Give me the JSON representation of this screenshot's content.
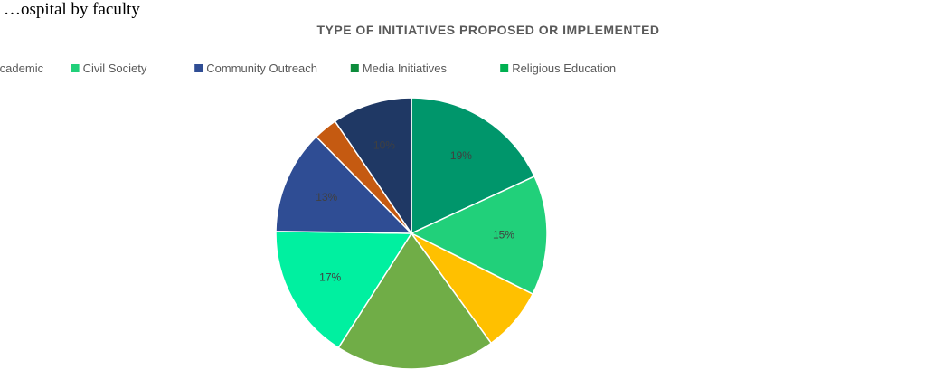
{
  "page_text": {
    "top_line": "…ospital by faculty"
  },
  "chart_data": {
    "type": "pie",
    "title": "TYPE OF INITIATIVES PROPOSED OR IMPLEMENTED",
    "legend_position": "top",
    "legend": [
      {
        "label": "Academic",
        "color": "#009966"
      },
      {
        "label": "Civil Society",
        "color": "#21d07a"
      },
      {
        "label": "Community Outreach",
        "color": "#2f4d94"
      },
      {
        "label": "Media Initiatives",
        "color": "#0d8c3c"
      },
      {
        "label": "Religious Education",
        "color": "#00b050"
      }
    ],
    "slices": [
      {
        "label": "19%",
        "value": 19,
        "color": "#00966b"
      },
      {
        "label": "15%",
        "value": 15,
        "color": "#21d07a"
      },
      {
        "label": "",
        "value": 8,
        "color": "#ffc000"
      },
      {
        "label": "",
        "value": 20,
        "color": "#70ad47"
      },
      {
        "label": "17%",
        "value": 17,
        "color": "#00f0a0"
      },
      {
        "label": "13%",
        "value": 13,
        "color": "#2f4d94"
      },
      {
        "label": "",
        "value": 3,
        "color": "#c55a11"
      },
      {
        "label": "10%",
        "value": 10,
        "color": "#1f3864"
      }
    ]
  }
}
